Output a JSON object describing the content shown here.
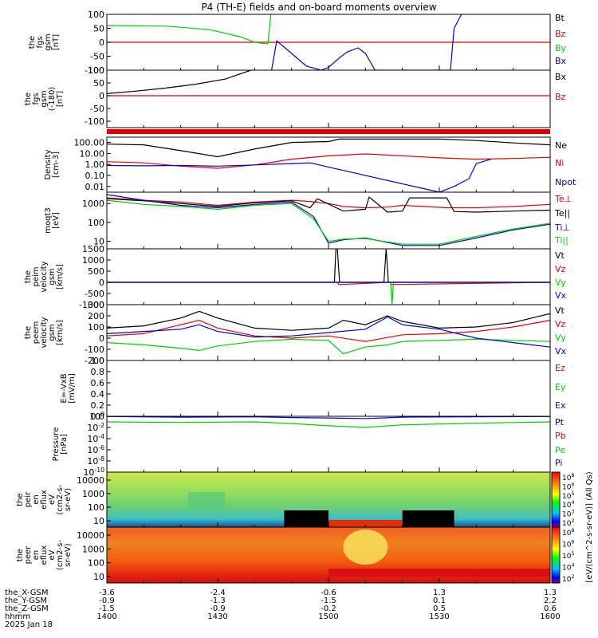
{
  "title": "P4 (TH-E) fields and on-board moments overview",
  "colors": {
    "black": "#000000",
    "red": "#e00000",
    "green": "#00cc00",
    "blue": "#0000dd"
  },
  "chart_data": [
    {
      "type": "line",
      "panel": "fgs_gsm",
      "ylabel_lines": [
        "the",
        "fgs",
        "gsm",
        "[nT]"
      ],
      "ylim": [
        -100,
        100
      ],
      "yticks": [
        "100",
        "50",
        "0",
        "-50",
        "-100"
      ],
      "series": [
        {
          "name": "Bt",
          "color": "black",
          "x": [],
          "y": []
        },
        {
          "name": "Bz",
          "color": "red",
          "x": [
            0,
            60
          ],
          "y": [
            0,
            0
          ]
        },
        {
          "name": "By",
          "color": "green",
          "x": [
            0,
            8,
            14,
            18,
            20,
            21.5,
            21.8,
            22.2
          ],
          "y": [
            60,
            58,
            45,
            20,
            0,
            -5,
            -5,
            100
          ]
        },
        {
          "name": "Bx",
          "color": "blue",
          "x": [
            22.3,
            23,
            25,
            27,
            29,
            30,
            31.5,
            32.5,
            34,
            35,
            36.3,
            46.5,
            47,
            48
          ],
          "y": [
            -100,
            5,
            -40,
            -85,
            -100,
            -90,
            -55,
            -35,
            -20,
            -40,
            -100,
            -100,
            50,
            100
          ]
        }
      ]
    },
    {
      "type": "line",
      "panel": "fgs_gsm_neg180",
      "ylabel_lines": [
        "the",
        "fgs",
        "gsm",
        "(-180)",
        "[nT]"
      ],
      "ylim": [
        -125,
        100
      ],
      "yticks": [
        "100",
        "50",
        "0",
        "-50",
        "-100"
      ],
      "series": [
        {
          "name": "Bx",
          "color": "black",
          "x": [
            0,
            4,
            8,
            12,
            16,
            19.5
          ],
          "y": [
            8,
            18,
            30,
            45,
            65,
            100
          ]
        },
        {
          "name": "Bz",
          "color": "red",
          "x": [
            0,
            60
          ],
          "y": [
            0,
            0
          ]
        }
      ]
    },
    {
      "type": "line",
      "panel": "density",
      "log": true,
      "ylabel_lines": [
        "Density",
        "[cm-3]"
      ],
      "ylim": [
        0.003,
        300
      ],
      "yticks": [
        "100.00",
        "10.00",
        "1.00",
        "0.10",
        "0.01"
      ],
      "series": [
        {
          "name": "Ne",
          "color": "black",
          "x": [
            0,
            5,
            10,
            15,
            20,
            25,
            30,
            31.5,
            40,
            45,
            50,
            55,
            60
          ],
          "y": [
            70,
            60,
            18,
            5,
            25,
            100,
            120,
            200,
            200,
            200,
            150,
            90,
            60
          ]
        },
        {
          "name": "Ni",
          "color": "red",
          "x": [
            0,
            5,
            10,
            15,
            20,
            25,
            30,
            35,
            40,
            45,
            50,
            55,
            60
          ],
          "y": [
            1.8,
            1.4,
            0.7,
            0.45,
            0.9,
            3,
            6,
            9,
            6,
            4,
            3,
            3.5,
            4.5
          ]
        },
        {
          "name": "Npot",
          "color": "blue",
          "x": [
            0,
            5,
            10,
            15,
            20,
            25,
            27.5,
            45,
            47,
            49,
            50,
            52
          ],
          "y": [
            0.8,
            0.75,
            0.8,
            0.7,
            0.9,
            1.2,
            1.4,
            0.003,
            0.01,
            0.05,
            1.2,
            3
          ]
        }
      ]
    },
    {
      "type": "line",
      "panel": "moms_temp",
      "log": true,
      "ylabel_lines": [
        "moqt3",
        "[eV]"
      ],
      "ylim": [
        4,
        4000
      ],
      "yticks": [
        "1000",
        "100",
        "10"
      ],
      "series": [
        {
          "name": "Te⊥",
          "color": "red",
          "x": [
            0,
            5,
            10,
            15,
            20,
            25,
            27.5,
            30,
            32,
            35,
            38,
            40,
            43,
            46,
            50,
            55,
            60
          ],
          "y": [
            2000,
            1500,
            1200,
            800,
            1200,
            1500,
            1300,
            1000,
            700,
            600,
            650,
            800,
            700,
            600,
            600,
            700,
            900
          ]
        },
        {
          "name": "Te||",
          "color": "black",
          "x": [
            0,
            5,
            10,
            15,
            20,
            25,
            27.5,
            28.5,
            32,
            35,
            35.5,
            38,
            40,
            41,
            46,
            47,
            50,
            55,
            60
          ],
          "y": [
            1800,
            1400,
            1000,
            700,
            1100,
            1400,
            600,
            1800,
            400,
            500,
            2200,
            350,
            400,
            2000,
            2000,
            380,
            350,
            400,
            450
          ]
        },
        {
          "name": "Ti⊥",
          "color": "blue",
          "x": [
            0,
            5,
            10,
            15,
            20,
            25,
            28,
            30,
            32,
            35,
            40,
            45,
            50,
            55,
            60
          ],
          "y": [
            3000,
            1500,
            800,
            600,
            900,
            1200,
            200,
            8,
            12,
            15,
            6,
            6,
            15,
            40,
            80
          ]
        },
        {
          "name": "Ti||",
          "color": "green",
          "x": [
            0,
            5,
            10,
            15,
            20,
            25,
            28,
            30,
            32,
            35,
            40,
            45,
            50,
            55,
            60
          ],
          "y": [
            1500,
            900,
            700,
            500,
            800,
            1000,
            150,
            10,
            13,
            14,
            7,
            7,
            18,
            45,
            90
          ]
        }
      ]
    },
    {
      "type": "line",
      "panel": "peim_velocity",
      "ylabel_lines": [
        "the",
        "peim",
        "velocity",
        "gsm",
        "[km/s]"
      ],
      "ylim": [
        -1000,
        1500
      ],
      "yticks": [
        "1500",
        "1000",
        "500",
        "0",
        "-500",
        "-1000"
      ],
      "series": [
        {
          "name": "Vt",
          "color": "black",
          "x": [
            0,
            30.8,
            31,
            31.2,
            31.5,
            37.5,
            37.8,
            38.1,
            60
          ],
          "y": [
            0,
            0,
            1500,
            1500,
            0,
            0,
            1500,
            0,
            0
          ]
        },
        {
          "name": "Vz",
          "color": "red",
          "x": [
            0,
            31.2,
            31.4,
            38.3,
            38.5,
            60
          ],
          "y": [
            0,
            0,
            -100,
            0,
            -100,
            0
          ]
        },
        {
          "name": "Vy",
          "color": "green",
          "x": [
            0,
            38.4,
            38.6,
            38.8,
            60
          ],
          "y": [
            0,
            0,
            -1000,
            0,
            0
          ]
        },
        {
          "name": "Vx",
          "color": "blue",
          "x": [
            0,
            60
          ],
          "y": [
            0,
            0
          ]
        }
      ]
    },
    {
      "type": "line",
      "panel": "peem_velocity",
      "ylabel_lines": [
        "the",
        "peem",
        "velocity",
        "gsm",
        "[km/s]"
      ],
      "ylim": [
        -200,
        300
      ],
      "yticks": [
        "300",
        "200",
        "100",
        "0",
        "-100",
        "-200"
      ],
      "series": [
        {
          "name": "Vt",
          "color": "black",
          "x": [
            0,
            5,
            10,
            12.5,
            15,
            20,
            25,
            30,
            32,
            35,
            38,
            40,
            45,
            50,
            55,
            60
          ],
          "y": [
            90,
            110,
            180,
            240,
            180,
            90,
            70,
            90,
            160,
            120,
            200,
            150,
            90,
            100,
            140,
            220
          ]
        },
        {
          "name": "Vz",
          "color": "red",
          "x": [
            0,
            5,
            10,
            12.5,
            15,
            20,
            25,
            30,
            35,
            40,
            45,
            50,
            55,
            60
          ],
          "y": [
            20,
            40,
            120,
            160,
            90,
            20,
            0,
            20,
            -30,
            30,
            40,
            60,
            100,
            160
          ]
        },
        {
          "name": "Vy",
          "color": "green",
          "x": [
            0,
            5,
            10,
            12.5,
            15,
            20,
            25,
            30,
            32,
            35,
            38,
            40,
            45,
            50,
            55,
            60
          ],
          "y": [
            -40,
            -60,
            -90,
            -110,
            -70,
            -30,
            -10,
            -20,
            -140,
            -80,
            -60,
            -30,
            -20,
            -10,
            -20,
            -30
          ]
        },
        {
          "name": "Vx",
          "color": "blue",
          "x": [
            0,
            5,
            10,
            12.5,
            15,
            20,
            25,
            30,
            35,
            38,
            40,
            45,
            50,
            55,
            60
          ],
          "y": [
            40,
            60,
            80,
            120,
            60,
            10,
            20,
            50,
            80,
            190,
            120,
            80,
            0,
            -40,
            -80
          ]
        }
      ]
    },
    {
      "type": "line",
      "panel": "exb",
      "ylabel_lines": [
        "E=-VxB",
        "[mV/m]"
      ],
      "ylim": [
        0,
        1
      ],
      "yticks": [
        "1.0",
        "0.8",
        "0.6",
        "0.4",
        "0.2",
        "0.0"
      ],
      "series": [
        {
          "name": "Ez",
          "color": "red",
          "x": [],
          "y": []
        },
        {
          "name": "Ey",
          "color": "green",
          "x": [],
          "y": []
        },
        {
          "name": "Ex",
          "color": "blue",
          "x": [],
          "y": []
        }
      ]
    },
    {
      "type": "line",
      "panel": "pressure",
      "log": true,
      "ylabel_lines": [
        "Pressure",
        "[nPa]"
      ],
      "ylim": [
        1e-10,
        1
      ],
      "yticks": [
        "10^0",
        "10^-2",
        "10^-4",
        "10^-6",
        "10^-8",
        "10^-10"
      ],
      "series": [
        {
          "name": "Pt",
          "color": "black",
          "x": [],
          "y": []
        },
        {
          "name": "Pb",
          "color": "red",
          "x": [],
          "y": []
        },
        {
          "name": "Pe",
          "color": "green",
          "x": [
            0,
            10,
            20,
            25,
            30,
            35,
            40,
            50,
            60
          ],
          "y": [
            0.1,
            0.08,
            0.1,
            0.05,
            0.02,
            0.01,
            0.03,
            0.06,
            0.1
          ]
        },
        {
          "name": "Pi",
          "color": "blue",
          "x": [
            0,
            10,
            20,
            25,
            30,
            35,
            40,
            50,
            60
          ],
          "y": [
            0.9,
            0.7,
            0.8,
            0.6,
            0.5,
            0.4,
            0.7,
            0.8,
            0.9
          ]
        }
      ]
    },
    {
      "type": "heatmap",
      "panel": "peir_energy",
      "ylabel_lines": [
        "the",
        "peir",
        "en",
        "eflux",
        "eV",
        "(cm2-s-",
        "sr-eV)"
      ],
      "yticks": [
        "10000",
        "1000",
        "100",
        "10"
      ]
    },
    {
      "type": "heatmap",
      "panel": "peer_energy",
      "ylabel_lines": [
        "the",
        "peer",
        "en",
        "eflux",
        "eV",
        "(cm2-s-",
        "sr-eV)"
      ],
      "yticks": [
        "10000",
        "1000",
        "100",
        "10"
      ]
    }
  ],
  "colorbar": {
    "label": "[eV/(cm^2-s-sr-eV)] (All Qs)",
    "ticks_top": [
      "10^8",
      "10^6",
      "10^5",
      "10^4",
      "10^3",
      "10^2"
    ],
    "ticks_bottom": [
      "10^8",
      "10^6",
      "10^5",
      "10^4",
      "10^2"
    ]
  },
  "x_axis": {
    "row_labels": [
      "the_X-GSM",
      "the_Y-GSM",
      "the_Z-GSM",
      "hhmm",
      "2025 Jan 18"
    ],
    "columns": [
      {
        "x": 0,
        "vals": [
          "-3.6",
          "-0.9",
          "-1.5",
          "1400"
        ]
      },
      {
        "x": 15,
        "vals": [
          "-2.4",
          "-1.3",
          "-0.9",
          "1430"
        ]
      },
      {
        "x": 30,
        "vals": [
          "-0.6",
          "-1.5",
          "-0.2",
          "1500"
        ]
      },
      {
        "x": 45,
        "vals": [
          "1.3",
          "0.1",
          "0.5",
          "1530"
        ]
      },
      {
        "x": 60,
        "vals": [
          "1.3",
          "2.2",
          "0.6",
          "1600"
        ]
      }
    ]
  }
}
